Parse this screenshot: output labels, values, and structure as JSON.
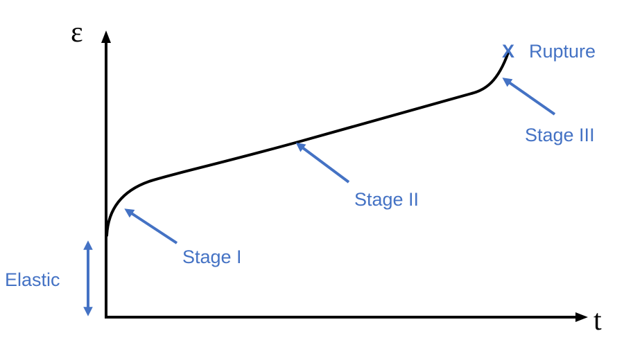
{
  "diagram": {
    "y_axis_label": "ε",
    "x_axis_label": "t",
    "annotations": {
      "stage1": "Stage I",
      "stage2": "Stage II",
      "stage3": "Stage III",
      "rupture": "Rupture",
      "elastic": "Elastic"
    },
    "rupture_marker": "X"
  },
  "colors": {
    "curve": "#000000",
    "annotation": "#4472C4"
  }
}
